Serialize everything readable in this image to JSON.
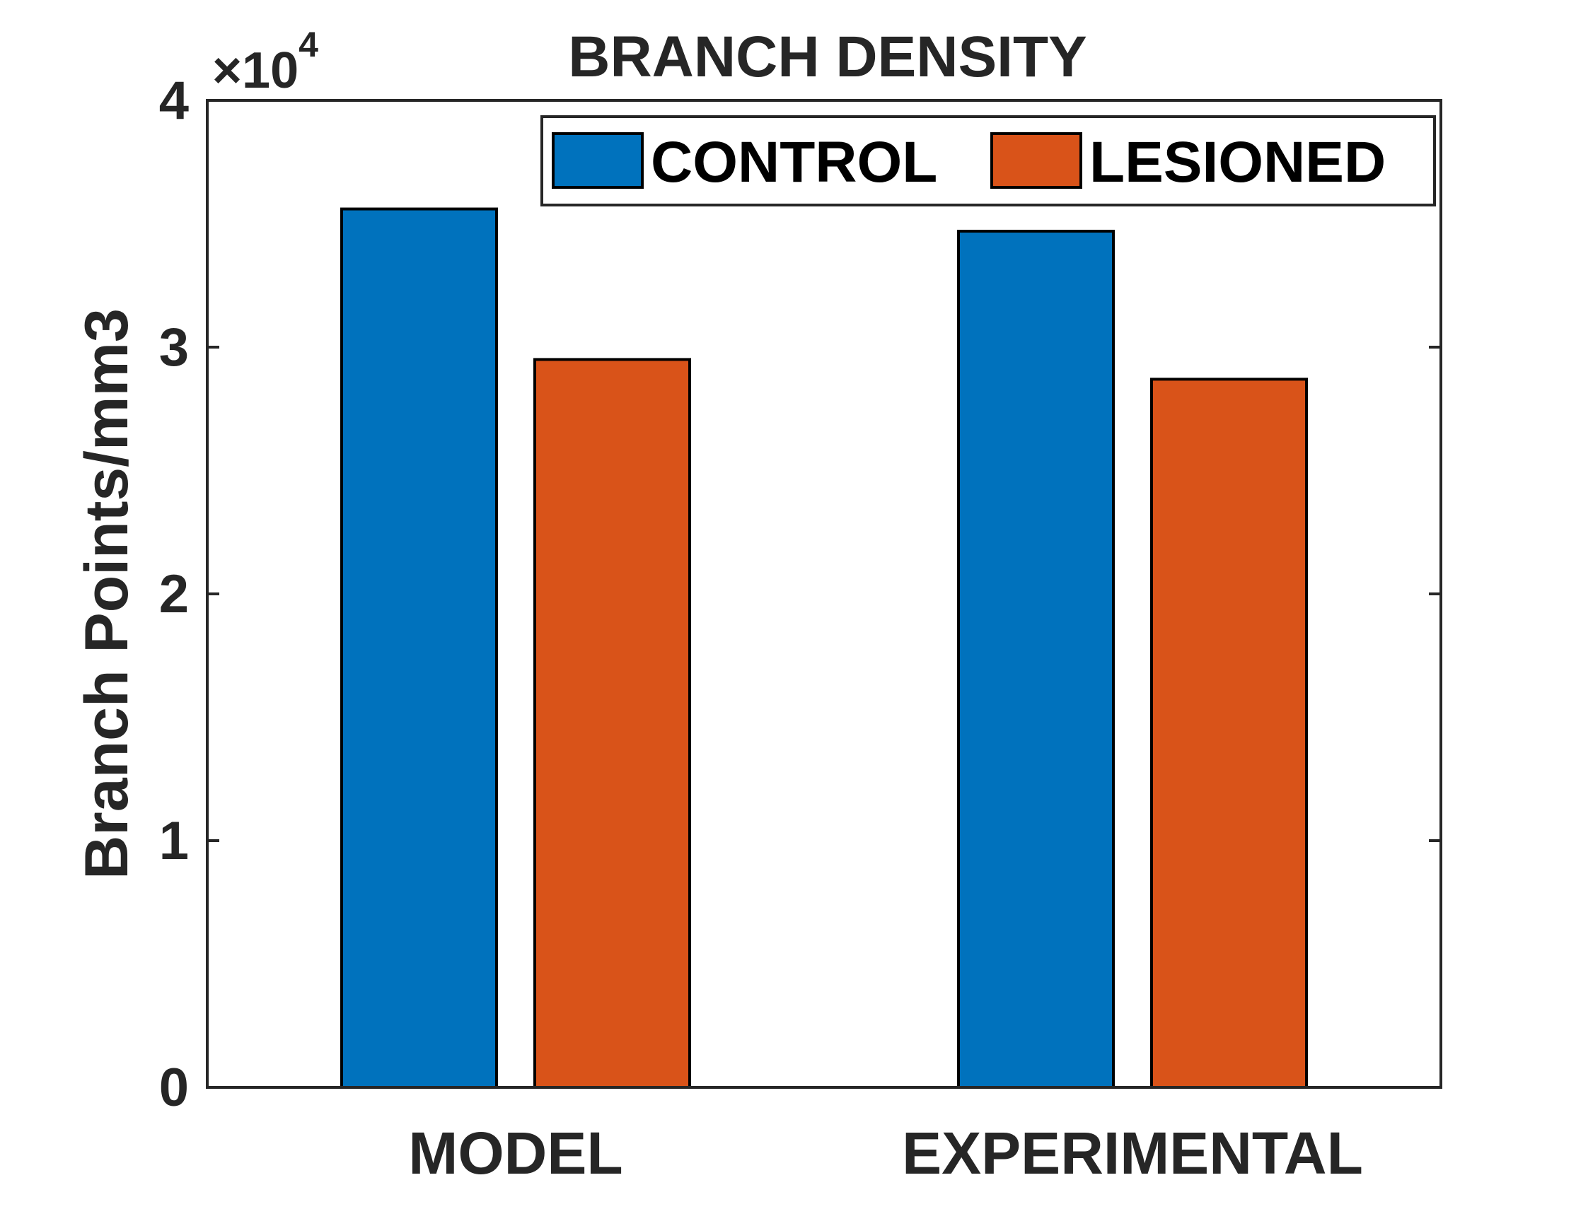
{
  "chart_data": {
    "type": "bar",
    "title": "BRANCH DENSITY",
    "xlabel": "",
    "ylabel": "Branch Points/mm3",
    "exponent_label": {
      "base": "×10",
      "power": "4"
    },
    "categories": [
      "MODEL",
      "EXPERIMENTAL"
    ],
    "series": [
      {
        "name": "CONTROL",
        "color": "#0072BD",
        "values": [
          35600,
          34700
        ]
      },
      {
        "name": "LESIONED",
        "color": "#D95319",
        "values": [
          29500,
          28700
        ]
      }
    ],
    "ylim": [
      0,
      40000
    ],
    "yticks": [
      0,
      10000,
      20000,
      30000,
      40000
    ],
    "ytick_labels": [
      "0",
      "1",
      "2",
      "3",
      "4"
    ],
    "grid": false,
    "legend": {
      "placement": "top-right",
      "orientation": "horizontal"
    }
  }
}
